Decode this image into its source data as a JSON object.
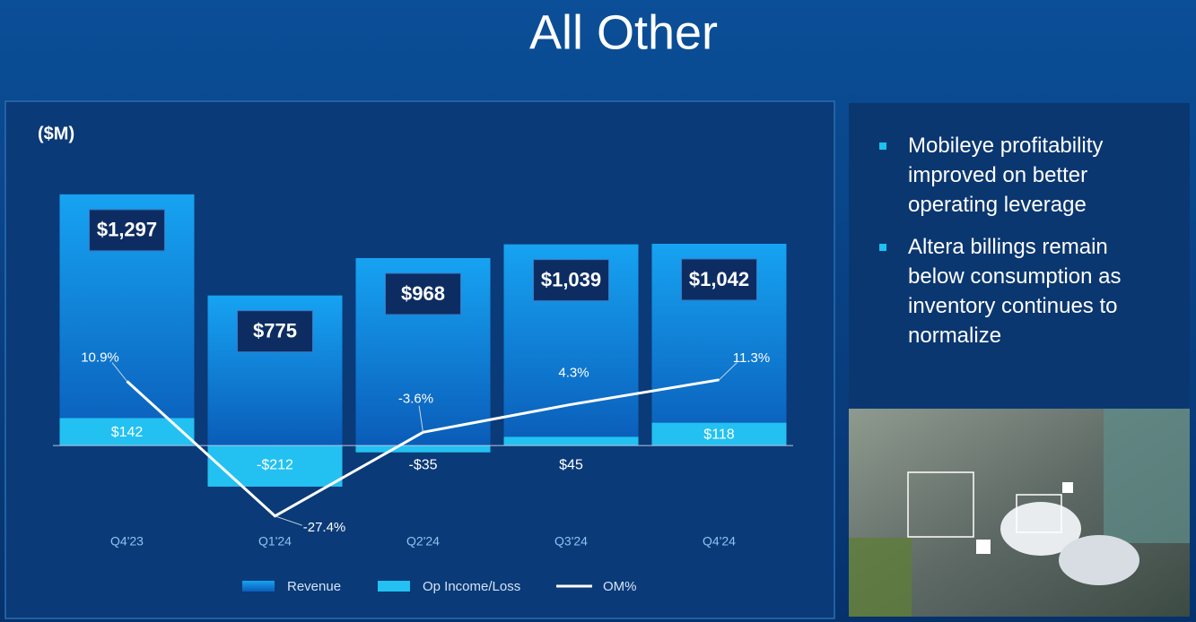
{
  "chart_data": {
    "type": "bar",
    "title": "All Other",
    "unit_label": "($M)",
    "categories": [
      "Q4'23",
      "Q1'24",
      "Q2'24",
      "Q3'24",
      "Q4'24"
    ],
    "series": [
      {
        "name": "Revenue",
        "color": "#1592e6",
        "values": [
          1297,
          775,
          968,
          1039,
          1042
        ],
        "value_labels": [
          "$1,297",
          "$775",
          "$968",
          "$1,039",
          "$1,042"
        ]
      },
      {
        "name": "Op Income/Loss",
        "color": "#22c1f1",
        "values": [
          142,
          -212,
          -35,
          45,
          118
        ],
        "value_labels": [
          "$142",
          "-$212",
          "-$35",
          "$45",
          "$118"
        ]
      },
      {
        "name": "OM%",
        "color": "#ffffff",
        "type": "line",
        "axis": "y2",
        "values": [
          10.9,
          -27.4,
          -3.6,
          4.3,
          11.3
        ],
        "value_labels": [
          "10.9%",
          "-27.4%",
          "-3.6%",
          "4.3%",
          "11.3%"
        ]
      }
    ],
    "ylim": [
      -300,
      1500
    ],
    "y2lim": [
      -30,
      80
    ],
    "bullets": [
      "Mobileye profitability improved on better operating leverage",
      "Altera billings remain below consumption as inventory continues to normalize"
    ]
  }
}
